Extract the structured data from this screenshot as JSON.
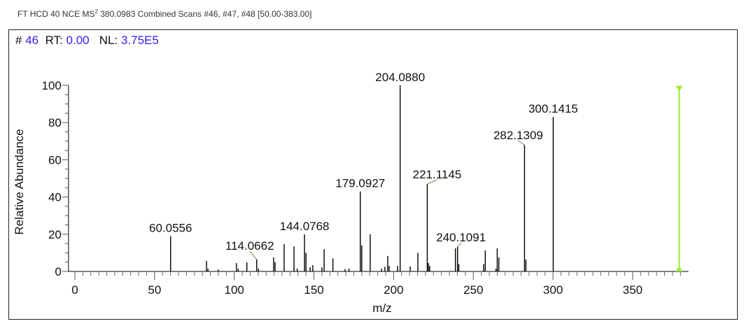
{
  "header": {
    "prefix": "FT HCD 40 NCE MS",
    "superscript": "2",
    "suffix": " 380.0983 Combined Scans #46, #47, #48 [50.00-383.00]"
  },
  "info": {
    "scan_label": "#",
    "scan": "46",
    "rt_label": "RT:",
    "rt": "0.00",
    "nl_label": "NL:",
    "nl": "3.75E5"
  },
  "chart_data": {
    "type": "bar",
    "subtype": "mass-spectrum-stick",
    "xlabel": "m/z",
    "ylabel": "Relative Abundance",
    "xlim": [
      -4,
      385
    ],
    "ylim": [
      0,
      100
    ],
    "xticks": [
      0,
      50,
      100,
      150,
      200,
      250,
      300,
      350
    ],
    "yticks": [
      0,
      20,
      40,
      60,
      80,
      100
    ],
    "grid": false,
    "peaks": [
      {
        "mz": 60.0556,
        "intensity": 19,
        "label": "60.0556"
      },
      {
        "mz": 82.6,
        "intensity": 5.6
      },
      {
        "mz": 83.5,
        "intensity": 1.5
      },
      {
        "mz": 90,
        "intensity": 1
      },
      {
        "mz": 101.4,
        "intensity": 4.5
      },
      {
        "mz": 102.5,
        "intensity": 1.5
      },
      {
        "mz": 107.9,
        "intensity": 4.9
      },
      {
        "mz": 114.0662,
        "intensity": 6.4,
        "label": "114.0662"
      },
      {
        "mz": 115.2,
        "intensity": 1.5
      },
      {
        "mz": 124.7,
        "intensity": 7.5
      },
      {
        "mz": 125.6,
        "intensity": 5
      },
      {
        "mz": 131.3,
        "intensity": 14.7
      },
      {
        "mz": 137.5,
        "intensity": 13.5
      },
      {
        "mz": 139.5,
        "intensity": 1.5
      },
      {
        "mz": 144.0768,
        "intensity": 19.9,
        "label": "144.0768"
      },
      {
        "mz": 145.0,
        "intensity": 10
      },
      {
        "mz": 147.6,
        "intensity": 2.2
      },
      {
        "mz": 149.3,
        "intensity": 3.4
      },
      {
        "mz": 155,
        "intensity": 2.2
      },
      {
        "mz": 156.4,
        "intensity": 12
      },
      {
        "mz": 161.9,
        "intensity": 7
      },
      {
        "mz": 169.5,
        "intensity": 1.2
      },
      {
        "mz": 172,
        "intensity": 1.5
      },
      {
        "mz": 179.0927,
        "intensity": 43,
        "label": "179.0927"
      },
      {
        "mz": 180.0,
        "intensity": 14
      },
      {
        "mz": 185.3,
        "intensity": 20
      },
      {
        "mz": 192.5,
        "intensity": 1.5
      },
      {
        "mz": 194.5,
        "intensity": 2.5
      },
      {
        "mz": 196.3,
        "intensity": 8.3
      },
      {
        "mz": 197.2,
        "intensity": 3
      },
      {
        "mz": 202.5,
        "intensity": 3
      },
      {
        "mz": 204.088,
        "intensity": 100,
        "label": "204.0880"
      },
      {
        "mz": 210.4,
        "intensity": 2.7
      },
      {
        "mz": 215.2,
        "intensity": 10
      },
      {
        "mz": 221.1145,
        "intensity": 47,
        "label": "221.1145"
      },
      {
        "mz": 221.8,
        "intensity": 4.5
      },
      {
        "mz": 222.6,
        "intensity": 3
      },
      {
        "mz": 238.8,
        "intensity": 12.4
      },
      {
        "mz": 240.1091,
        "intensity": 13.2,
        "label": "240.1091"
      },
      {
        "mz": 240.9,
        "intensity": 4
      },
      {
        "mz": 256.5,
        "intensity": 4
      },
      {
        "mz": 257.5,
        "intensity": 11.3
      },
      {
        "mz": 264.2,
        "intensity": 1.5
      },
      {
        "mz": 265.0,
        "intensity": 12.4
      },
      {
        "mz": 266.0,
        "intensity": 7.5
      },
      {
        "mz": 282.1309,
        "intensity": 68,
        "label": "282.1309"
      },
      {
        "mz": 283.0,
        "intensity": 6.4
      },
      {
        "mz": 300.1415,
        "intensity": 83,
        "label": "300.1415"
      }
    ],
    "precursor_marker": {
      "mz": 380.0983,
      "intensity": 99,
      "color": "#99ee33"
    }
  }
}
